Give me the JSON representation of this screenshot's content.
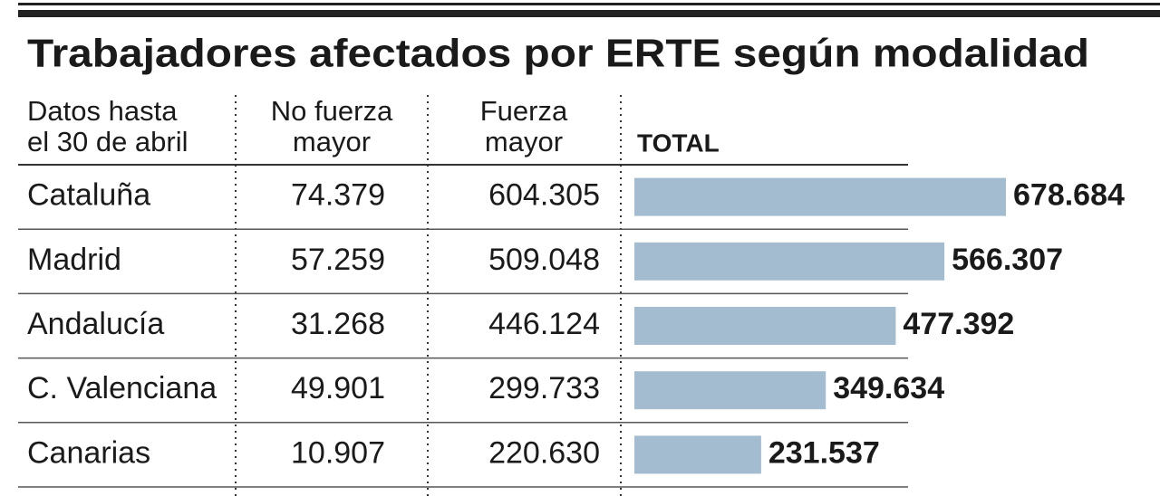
{
  "chart_data": {
    "type": "bar",
    "title": "Trabajadores afectados por ERTE según modalidad",
    "column_headers": [
      [
        "Datos hasta",
        "el 30 de abril"
      ],
      [
        "No fuerza",
        "mayor"
      ],
      [
        "Fuerza",
        "mayor"
      ],
      [
        "TOTAL"
      ]
    ],
    "categories": [
      "Cataluña",
      "Madrid",
      "Andalucía",
      "C. Valenciana",
      "Canarias"
    ],
    "no_fuerza_mayor": {
      "values": [
        74379,
        57259,
        31268,
        49901,
        10907
      ],
      "value_labels": [
        "74.379",
        "57.259",
        "31.268",
        "49.901",
        "10.907"
      ]
    },
    "fuerza_mayor": {
      "values": [
        604305,
        509048,
        446124,
        299733,
        220630
      ],
      "value_labels": [
        "604.305",
        "509.048",
        "446.124",
        "299.733",
        "220.630"
      ]
    },
    "values": [
      678684,
      566307,
      477392,
      349634,
      231537
    ],
    "value_labels": [
      "678.684",
      "566.307",
      "477.392",
      "349.634",
      "231.537"
    ],
    "color": "#a3bcd0"
  }
}
